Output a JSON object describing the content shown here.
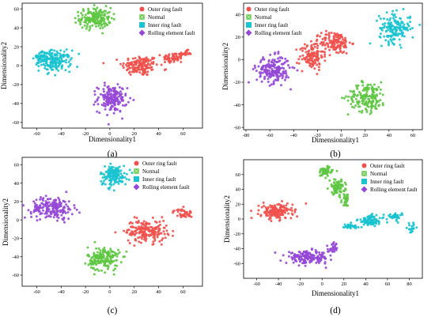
{
  "figure": {
    "legend_labels": [
      "Outer ring fault",
      "Normal",
      "Inner ring fault",
      "Rolling element fault"
    ],
    "colors": {
      "Outer ring fault": "#f0514c",
      "Normal": "#5ec742",
      "Inner ring fault": "#19c3cf",
      "Rolling element fault": "#9548d6"
    }
  },
  "chart_data": [
    {
      "panel": "(a)",
      "type": "scatter",
      "xlabel": "Dimensionality1",
      "ylabel": "Dimensionality2",
      "xlim": [
        -72,
        76
      ],
      "ylim": [
        -66,
        66
      ],
      "xticks": [
        -60,
        -40,
        -20,
        0,
        20,
        40,
        60
      ],
      "yticks": [
        -60,
        -40,
        -20,
        0,
        20,
        40,
        60
      ],
      "legend_position": "top",
      "series": [
        {
          "name": "Outer ring fault",
          "clusters": [
            {
              "center": [
                25,
                0
              ],
              "spread": [
                15,
                11
              ],
              "n": 150
            },
            {
              "center": [
                52,
                8
              ],
              "spread": [
                9,
                6
              ],
              "n": 60
            },
            {
              "center": [
                62,
                13
              ],
              "spread": [
                5,
                3
              ],
              "n": 25
            }
          ]
        },
        {
          "name": "Normal",
          "clusters": [
            {
              "center": [
                -12,
                50
              ],
              "spread": [
                13,
                11
              ],
              "n": 170
            }
          ]
        },
        {
          "name": "Inner ring fault",
          "clusters": [
            {
              "center": [
                -45,
                5
              ],
              "spread": [
                13,
                11
              ],
              "n": 170
            },
            {
              "center": [
                -56,
                10
              ],
              "spread": [
                6,
                5
              ],
              "n": 35
            }
          ]
        },
        {
          "name": "Rolling element fault",
          "clusters": [
            {
              "center": [
                2,
                -35
              ],
              "spread": [
                12,
                14
              ],
              "n": 170
            }
          ]
        }
      ]
    },
    {
      "panel": "(b)",
      "type": "scatter",
      "xlabel": "Dimensionality1",
      "ylabel": "Dimensionality2",
      "xlim": [
        -82,
        68
      ],
      "ylim": [
        -62,
        50
      ],
      "xticks": [
        -80,
        -60,
        -40,
        -20,
        0,
        20,
        40,
        60
      ],
      "yticks": [
        -60,
        -40,
        -20,
        0,
        20,
        40
      ],
      "legend_position": "top-left",
      "series": [
        {
          "name": "Outer ring fault",
          "clusters": [
            {
              "center": [
                -25,
                3
              ],
              "spread": [
                10,
                12
              ],
              "n": 120
            },
            {
              "center": [
                -5,
                15
              ],
              "spread": [
                13,
                10
              ],
              "n": 140
            }
          ]
        },
        {
          "name": "Normal",
          "clusters": [
            {
              "center": [
                22,
                -33
              ],
              "spread": [
                16,
                13
              ],
              "n": 170
            }
          ]
        },
        {
          "name": "Inner ring fault",
          "clusters": [
            {
              "center": [
                45,
                28
              ],
              "spread": [
                13,
                13
              ],
              "n": 160
            }
          ]
        },
        {
          "name": "Rolling element fault",
          "clusters": [
            {
              "center": [
                -57,
                -9
              ],
              "spread": [
                14,
                12
              ],
              "n": 190
            }
          ]
        }
      ]
    },
    {
      "panel": "(c)",
      "type": "scatter",
      "xlabel": "",
      "ylabel": "Dimensionality2",
      "xlim": [
        -72,
        76
      ],
      "ylim": [
        -72,
        68
      ],
      "xticks": [
        -60,
        -40,
        -20,
        0,
        20,
        40,
        60
      ],
      "yticks": [
        -60,
        -40,
        -20,
        0,
        20,
        40,
        60
      ],
      "legend_position": "top",
      "series": [
        {
          "name": "Outer ring fault",
          "clusters": [
            {
              "center": [
                30,
                -12
              ],
              "spread": [
                17,
                12
              ],
              "n": 190
            },
            {
              "center": [
                60,
                7
              ],
              "spread": [
                8,
                5
              ],
              "n": 40
            }
          ]
        },
        {
          "name": "Normal",
          "clusters": [
            {
              "center": [
                -5,
                -42
              ],
              "spread": [
                13,
                13
              ],
              "n": 180
            }
          ]
        },
        {
          "name": "Inner ring fault",
          "clusters": [
            {
              "center": [
                3,
                48
              ],
              "spread": [
                11,
                11
              ],
              "n": 150
            }
          ]
        },
        {
          "name": "Rolling element fault",
          "clusters": [
            {
              "center": [
                -47,
                13
              ],
              "spread": [
                17,
                12
              ],
              "n": 190
            }
          ]
        }
      ]
    },
    {
      "panel": "(d)",
      "type": "scatter",
      "xlabel": "Dimensionality1",
      "ylabel": "Dimensionality2",
      "xlim": [
        -72,
        92
      ],
      "ylim": [
        -80,
        80
      ],
      "xticks": [
        -60,
        -40,
        -20,
        0,
        20,
        40,
        60,
        80
      ],
      "yticks": [
        -60,
        -40,
        -20,
        0,
        20,
        40,
        60
      ],
      "legend_position": "top-right",
      "series": [
        {
          "name": "Outer ring fault",
          "clusters": [
            {
              "center": [
                -42,
                10
              ],
              "spread": [
                15,
                10
              ],
              "n": 170
            }
          ]
        },
        {
          "name": "Normal",
          "clusters": [
            {
              "center": [
                3,
                64
              ],
              "spread": [
                7,
                7
              ],
              "n": 50
            },
            {
              "center": [
                14,
                43
              ],
              "spread": [
                7,
                10
              ],
              "n": 80
            },
            {
              "center": [
                22,
                26
              ],
              "spread": [
                4,
                8
              ],
              "n": 30
            }
          ]
        },
        {
          "name": "Inner ring fault",
          "clusters": [
            {
              "center": [
                25,
                -10
              ],
              "spread": [
                10,
                4
              ],
              "n": 40
            },
            {
              "center": [
                45,
                -2
              ],
              "spread": [
                12,
                7
              ],
              "n": 90
            },
            {
              "center": [
                67,
                3
              ],
              "spread": [
                6,
                5
              ],
              "n": 35
            },
            {
              "center": [
                82,
                -12
              ],
              "spread": [
                4,
                6
              ],
              "n": 20
            }
          ]
        },
        {
          "name": "Rolling element fault",
          "clusters": [
            {
              "center": [
                -13,
                -52
              ],
              "spread": [
                20,
                8
              ],
              "n": 170
            },
            {
              "center": [
                10,
                -40
              ],
              "spread": [
                4,
                8
              ],
              "n": 30
            }
          ]
        }
      ]
    }
  ]
}
